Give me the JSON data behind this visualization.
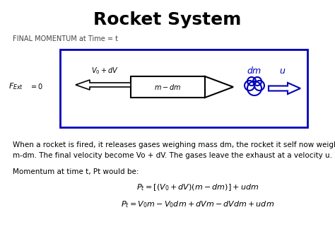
{
  "title": "Rocket System",
  "title_fontsize": 18,
  "title_fontweight": "bold",
  "bg_color": "#ffffff",
  "fig_bg": "#ffffff",
  "subtitle": "FINAL MOMENTUM at Time = t",
  "subtitle_fontsize": 7,
  "body_text1": "When a rocket is fired, it releases gases weighing mass dm, the rocket it self now weighs",
  "body_text2": "m-dm. The final velocity become Vo + dV. The gases leave the exhaust at a velocity u.",
  "momentum_label": "Momentum at time t, Pt would be:",
  "eq1": "$P_t = [(V_0 + dV)(m - dm)] + udm$",
  "eq2": "$P_t = V_0m - V_0dm + dVm - dVdm + udm$",
  "box_color": "#0000bb",
  "arrow_color": "#0000bb",
  "rocket_color": "#000000",
  "text_color": "#000000",
  "fext_text": "$F_{Ext}$",
  "fext_eq": "$= 0$",
  "v0dv": "$V_0 + dV$",
  "mdm": "$m - dm$",
  "dm_label": "$dm$",
  "u_label": "$u$"
}
